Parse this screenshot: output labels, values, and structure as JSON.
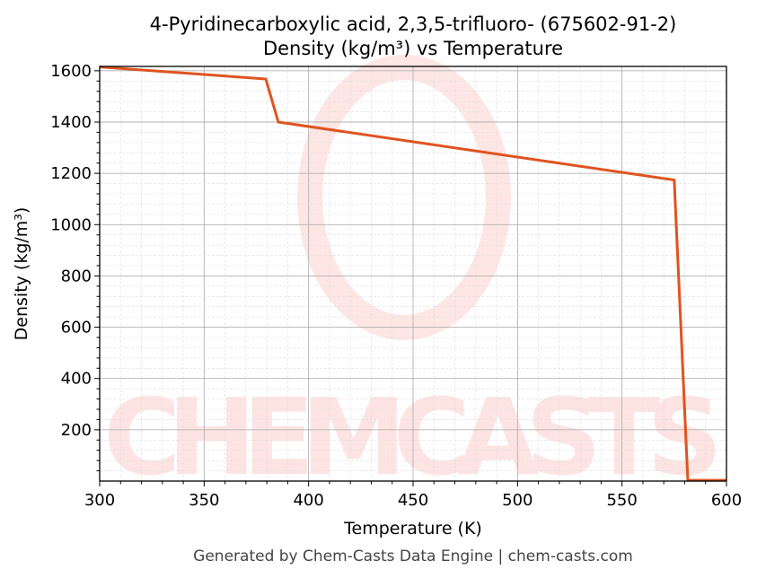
{
  "chart_data": {
    "type": "line",
    "title": "4-Pyridinecarboxylic acid, 2,3,5-trifluoro- (675602-91-2)",
    "subtitle": "Density (kg/m³) vs Temperature",
    "xlabel": "Temperature (K)",
    "ylabel": "Density (kg/m³)",
    "xlim": [
      300,
      600
    ],
    "ylim": [
      0,
      1617
    ],
    "xticks": [
      300,
      350,
      400,
      450,
      500,
      550,
      600
    ],
    "yticks": [
      200,
      400,
      600,
      800,
      1000,
      1200,
      1400,
      1600
    ],
    "grid": true,
    "series": [
      {
        "color": "#e0531f",
        "x": [
          300,
          379.5,
          385.5,
          575,
          581.5,
          600
        ],
        "y": [
          1615,
          1568,
          1400,
          1174,
          3,
          3
        ]
      }
    ]
  },
  "watermark": "CHEMCASTS",
  "footer": "Generated by Chem-Casts Data Engine | chem-casts.com"
}
